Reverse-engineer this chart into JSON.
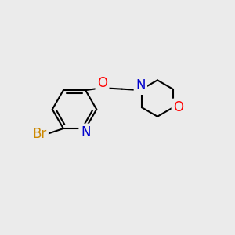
{
  "background_color": "#ebebeb",
  "atom_colors": {
    "N": "#0000cc",
    "O": "#ff0000",
    "Br": "#cc8800",
    "C": "#000000"
  },
  "bond_color": "#000000",
  "bond_width": 1.5,
  "font_size_atoms": 11,
  "figsize": [
    3.0,
    3.0
  ],
  "dpi": 100
}
